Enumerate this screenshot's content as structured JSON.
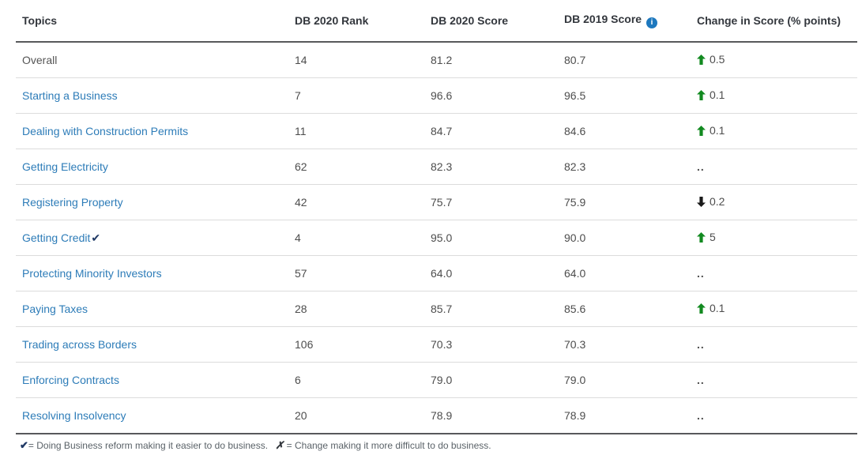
{
  "colors": {
    "link_blue": "#2d7cb8",
    "up_green": "#128a20",
    "down_black": "#1a1a1a",
    "check_navy": "#1f3864",
    "info_blue": "#1d78be",
    "header_text": "#33373d",
    "body_text": "#4d4d4d"
  },
  "table": {
    "columns": [
      {
        "label": "Topics"
      },
      {
        "label": "DB 2020 Rank"
      },
      {
        "label": "DB 2020 Score"
      },
      {
        "label": "DB 2019 Score",
        "info_glyph": "i"
      },
      {
        "label": "Change in Score (% points)"
      }
    ],
    "rows": [
      {
        "topic": "Overall",
        "is_link": false,
        "has_check": false,
        "rank": "14",
        "score_2020": "81.2",
        "score_2019": "80.7",
        "change": {
          "dir": "up",
          "value": "0.5"
        }
      },
      {
        "topic": "Starting a Business",
        "is_link": true,
        "has_check": false,
        "rank": "7",
        "score_2020": "96.6",
        "score_2019": "96.5",
        "change": {
          "dir": "up",
          "value": "0.1"
        }
      },
      {
        "topic": "Dealing with Construction Permits",
        "is_link": true,
        "has_check": false,
        "rank": "11",
        "score_2020": "84.7",
        "score_2019": "84.6",
        "change": {
          "dir": "up",
          "value": "0.1"
        }
      },
      {
        "topic": "Getting Electricity",
        "is_link": true,
        "has_check": false,
        "rank": "62",
        "score_2020": "82.3",
        "score_2019": "82.3",
        "change": {
          "dir": "none",
          "value": ".."
        }
      },
      {
        "topic": "Registering Property",
        "is_link": true,
        "has_check": false,
        "rank": "42",
        "score_2020": "75.7",
        "score_2019": "75.9",
        "change": {
          "dir": "down",
          "value": "0.2"
        }
      },
      {
        "topic": "Getting Credit",
        "is_link": true,
        "has_check": true,
        "rank": "4",
        "score_2020": "95.0",
        "score_2019": "90.0",
        "change": {
          "dir": "up",
          "value": "5"
        }
      },
      {
        "topic": "Protecting Minority Investors",
        "is_link": true,
        "has_check": false,
        "rank": "57",
        "score_2020": "64.0",
        "score_2019": "64.0",
        "change": {
          "dir": "none",
          "value": ".."
        }
      },
      {
        "topic": "Paying Taxes",
        "is_link": true,
        "has_check": false,
        "rank": "28",
        "score_2020": "85.7",
        "score_2019": "85.6",
        "change": {
          "dir": "up",
          "value": "0.1"
        }
      },
      {
        "topic": "Trading across Borders",
        "is_link": true,
        "has_check": false,
        "rank": "106",
        "score_2020": "70.3",
        "score_2019": "70.3",
        "change": {
          "dir": "none",
          "value": ".."
        }
      },
      {
        "topic": "Enforcing Contracts",
        "is_link": true,
        "has_check": false,
        "rank": "6",
        "score_2020": "79.0",
        "score_2019": "79.0",
        "change": {
          "dir": "none",
          "value": ".."
        }
      },
      {
        "topic": "Resolving Insolvency",
        "is_link": true,
        "has_check": false,
        "rank": "20",
        "score_2020": "78.9",
        "score_2019": "78.9",
        "change": {
          "dir": "none",
          "value": ".."
        }
      }
    ]
  },
  "footnote": {
    "check_symbol": "✔",
    "check_text": "= Doing Business reform making it easier to do business.",
    "x_symbol": "✗",
    "x_text": "=  Change making it more difficult to do business."
  }
}
